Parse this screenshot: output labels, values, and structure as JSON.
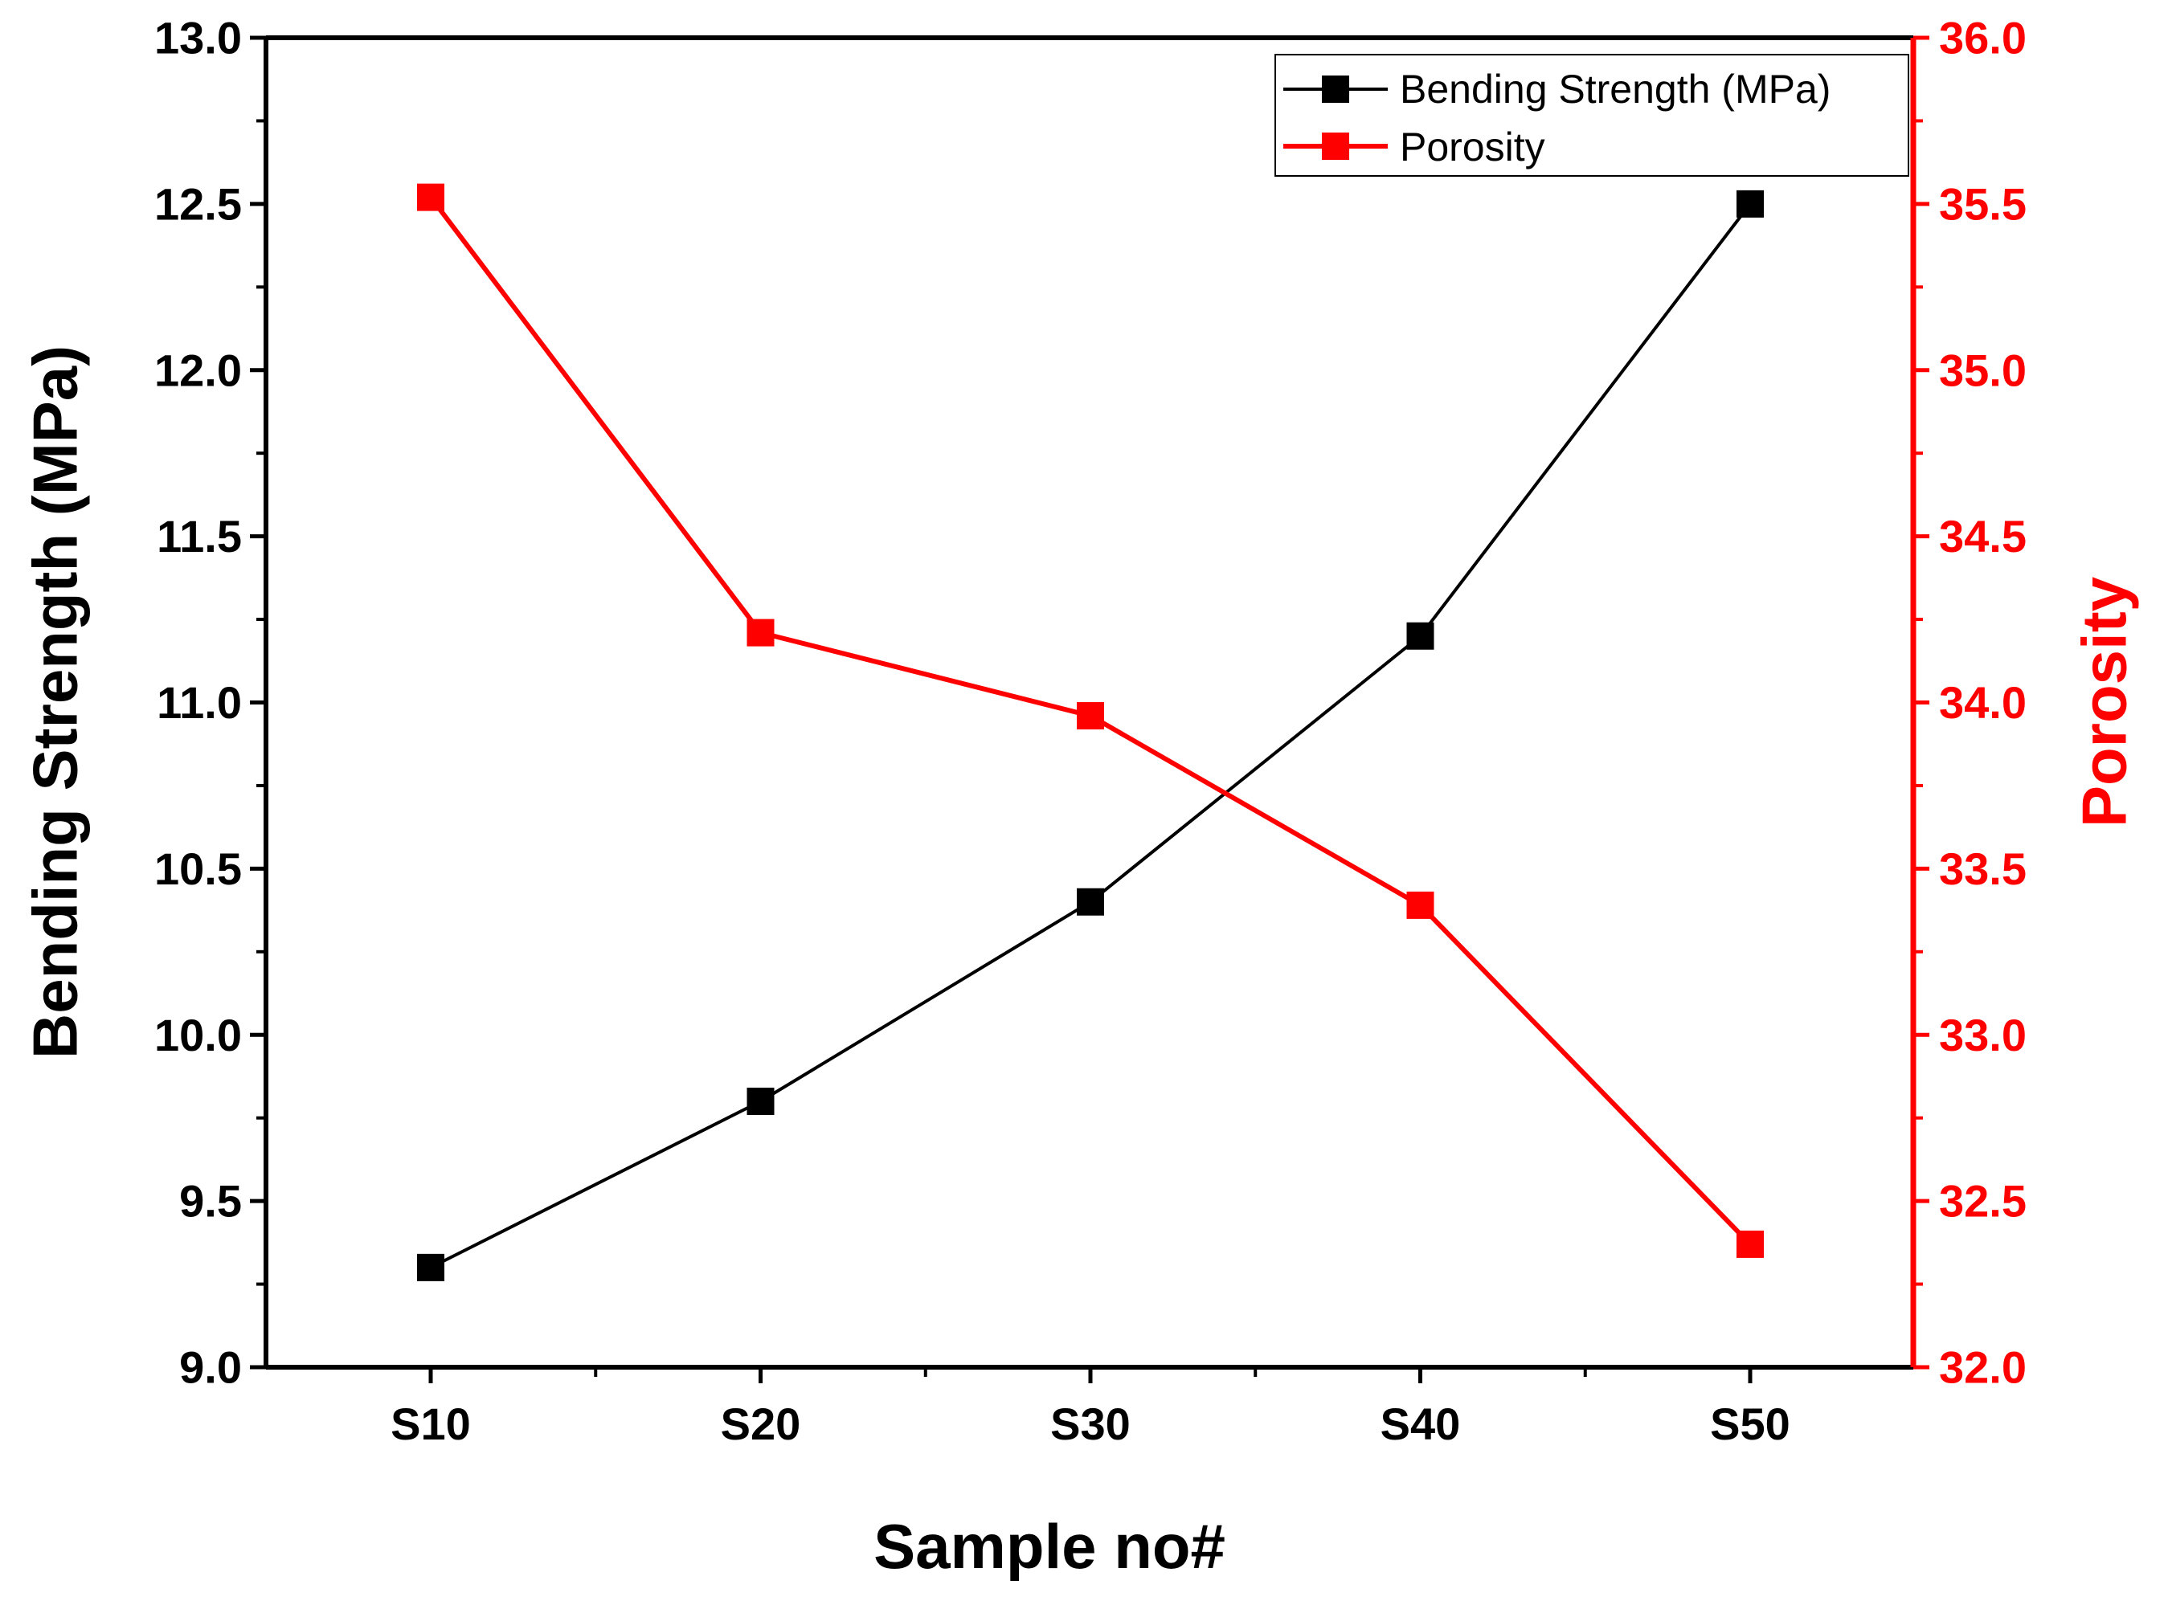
{
  "chart_data": {
    "type": "line",
    "title": "",
    "xlabel": "Sample no#",
    "categories": [
      "S10",
      "S20",
      "S30",
      "S40",
      "S50"
    ],
    "y_left": {
      "label": "Bending Strength (MPa)",
      "lim": [
        9.0,
        13.0
      ],
      "major_step": 0.5,
      "tick_labels": [
        "9.0",
        "9.5",
        "10.0",
        "10.5",
        "11.0",
        "11.5",
        "12.0",
        "12.5",
        "13.0"
      ],
      "color": "#000000"
    },
    "y_right": {
      "label": "Porosity",
      "lim": [
        32.0,
        36.0
      ],
      "major_step": 0.5,
      "tick_labels": [
        "32.0",
        "32.5",
        "33.0",
        "33.5",
        "34.0",
        "34.5",
        "35.0",
        "35.5",
        "36.0"
      ],
      "color": "#ff0000"
    },
    "series": [
      {
        "name": "Bending Strength (MPa)",
        "axis": "left",
        "color": "#000000",
        "marker": "square",
        "values": [
          9.3,
          9.8,
          10.4,
          11.2,
          12.5
        ]
      },
      {
        "name": "Porosity",
        "axis": "right",
        "color": "#ff0000",
        "marker": "square",
        "values": [
          35.52,
          34.21,
          33.96,
          33.39,
          32.37
        ]
      }
    ],
    "legend": {
      "position": "top-right",
      "entries": [
        "Bending Strength (MPa)",
        "Porosity"
      ]
    }
  }
}
